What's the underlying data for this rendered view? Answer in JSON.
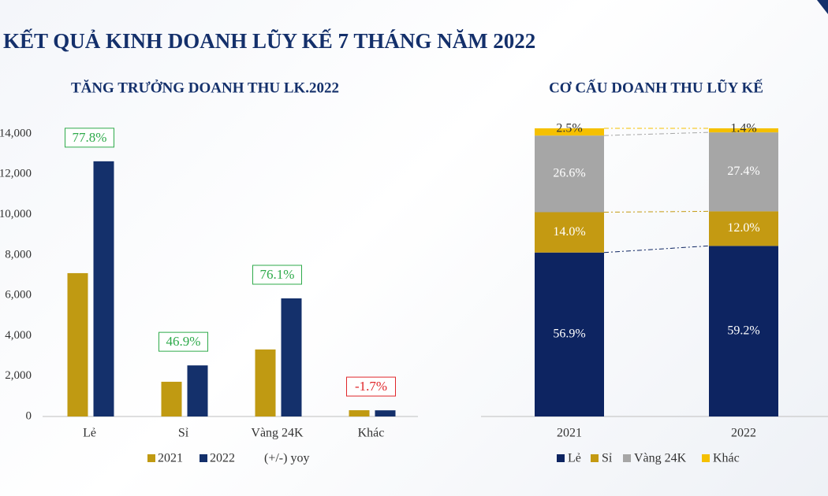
{
  "page_title": "KẾT QUẢ KINH DOANH LŨY KẾ 7 THÁNG NĂM 2022",
  "chart_data": [
    {
      "type": "bar",
      "title": "TĂNG TRƯỞNG DOANH THU LK.2022",
      "categories": [
        "Lẻ",
        "Sỉ",
        "Vàng 24K",
        "Khác"
      ],
      "series": [
        {
          "name": "2021",
          "color": "#c09a12",
          "values": [
            7100,
            1720,
            3320,
            310
          ]
        },
        {
          "name": "2022",
          "color": "#14306b",
          "values": [
            12640,
            2530,
            5850,
            305
          ]
        }
      ],
      "yoy": {
        "name": "(+/-) yoy",
        "values": [
          77.8,
          46.9,
          76.1,
          -1.7
        ],
        "value_labels": [
          "77.8%",
          "46.9%",
          "76.1%",
          "-1.7%"
        ],
        "color": "#2eaa4a",
        "negative_color": "#e0262a"
      },
      "ylim": [
        0,
        14000
      ],
      "yticks": [
        {
          "value": 0,
          "label": "0"
        },
        {
          "value": 2000,
          "label": "2,000"
        },
        {
          "value": 4000,
          "label": "4,000"
        },
        {
          "value": 6000,
          "label": "6,000"
        },
        {
          "value": 8000,
          "label": "8,000"
        },
        {
          "value": 10000,
          "label": "10,000"
        },
        {
          "value": 12000,
          "label": "12,000"
        },
        {
          "value": 14000,
          "label": "14,000"
        }
      ]
    },
    {
      "type": "stacked_bar",
      "title": "CƠ CẤU DOANH THU LŨY KẾ",
      "categories": [
        "2021",
        "2022"
      ],
      "series": [
        {
          "name": "Lẻ",
          "color": "#0d2461",
          "values": [
            56.9,
            59.2
          ],
          "value_labels": [
            "56.9%",
            "59.2%"
          ]
        },
        {
          "name": "Sỉ",
          "color": "#c49a12",
          "values": [
            14.0,
            12.0
          ],
          "value_labels": [
            "14.0%",
            "12.0%"
          ]
        },
        {
          "name": "Vàng 24K",
          "color": "#a6a6a6",
          "values": [
            26.6,
            27.4
          ],
          "value_labels": [
            "26.6%",
            "27.4%"
          ]
        },
        {
          "name": "Khác",
          "color": "#f5c000",
          "values": [
            2.5,
            1.4
          ],
          "value_labels": [
            "2.5%",
            "1.4%"
          ]
        }
      ],
      "ylim": [
        0,
        100
      ]
    }
  ]
}
